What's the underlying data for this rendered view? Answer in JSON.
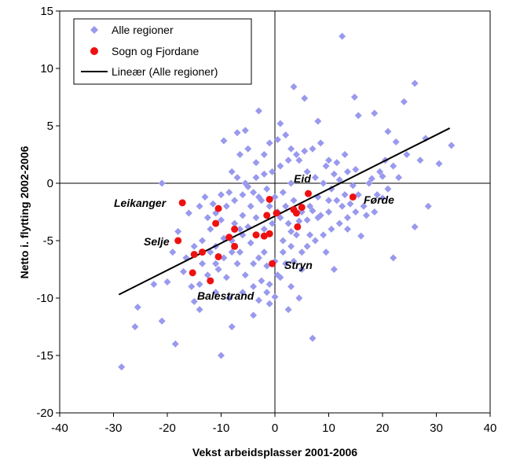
{
  "chart_data": {
    "type": "scatter",
    "xlabel": "Vekst arbeidsplasser 2001-2006",
    "ylabel": "Netto i. flytting 2002-2006",
    "xlim": [
      -40,
      40
    ],
    "ylim": [
      -20,
      15
    ],
    "xticks": [
      -40,
      -30,
      -20,
      -10,
      0,
      10,
      20,
      30,
      40
    ],
    "yticks": [
      -20,
      -15,
      -10,
      -5,
      0,
      5,
      10,
      15
    ],
    "grid": false,
    "legend_position": "top-left",
    "legend": [
      "Alle regioner",
      "Sogn og Fjordane",
      "Lineær (Alle regioner)"
    ],
    "colors": {
      "all": "#9999ee",
      "sogn": "#ee1111",
      "trend": "#000000"
    },
    "series": [
      {
        "name": "Alle regioner",
        "marker": "diamond",
        "points": [
          [
            12.5,
            12.8
          ],
          [
            26,
            8.7
          ],
          [
            3.5,
            8.4
          ],
          [
            14.8,
            7.5
          ],
          [
            24,
            7.1
          ],
          [
            5.5,
            7.4
          ],
          [
            -3,
            6.3
          ],
          [
            -5.5,
            4.6
          ],
          [
            -7,
            4.4
          ],
          [
            -9.5,
            3.7
          ],
          [
            1,
            5.2
          ],
          [
            8,
            5.4
          ],
          [
            15.5,
            5.9
          ],
          [
            18.5,
            6.1
          ],
          [
            21,
            4.5
          ],
          [
            22.5,
            3.6
          ],
          [
            28,
            3.9
          ],
          [
            32.8,
            3.3
          ],
          [
            20,
            0.6
          ],
          [
            18,
            0.4
          ],
          [
            -21,
            0
          ],
          [
            -28.5,
            -16
          ],
          [
            -26,
            -12.5
          ],
          [
            -25.5,
            -10.8
          ],
          [
            -21,
            -12
          ],
          [
            -18.5,
            -14
          ],
          [
            -10,
            -15
          ],
          [
            -20,
            -8.6
          ],
          [
            -22.5,
            -8.8
          ],
          [
            -14,
            -11
          ],
          [
            -15,
            -10.3
          ],
          [
            -8,
            -12.5
          ],
          [
            -4,
            -11.5
          ],
          [
            -1,
            -10.5
          ],
          [
            0,
            -9.9
          ],
          [
            2.5,
            -11
          ],
          [
            7,
            -13.5
          ],
          [
            22,
            -6.5
          ],
          [
            26,
            -3.8
          ],
          [
            28.5,
            -2
          ],
          [
            30.5,
            1.7
          ],
          [
            16,
            -4.6
          ],
          [
            13.5,
            -4
          ],
          [
            11,
            -7.5
          ],
          [
            9.5,
            -6
          ],
          [
            -16,
            -2.6
          ],
          [
            -18,
            -4.2
          ],
          [
            -19,
            -6
          ],
          [
            -17,
            -7.7
          ],
          [
            -13.5,
            -7
          ],
          [
            -12,
            -6
          ],
          [
            -11,
            -5.5
          ],
          [
            -9.5,
            -4.8
          ],
          [
            -8,
            -5
          ],
          [
            -6,
            -4.5
          ],
          [
            -4.5,
            -5.2
          ],
          [
            -3,
            -6.5
          ],
          [
            -1.5,
            -7.2
          ],
          [
            1.5,
            -6
          ],
          [
            3,
            -5.5
          ],
          [
            5,
            -7.5
          ],
          [
            6.5,
            -4.5
          ],
          [
            8,
            -3
          ],
          [
            10,
            -2.5
          ],
          [
            11.5,
            -1.5
          ],
          [
            13,
            -1
          ],
          [
            14.5,
            -0.2
          ],
          [
            16.5,
            -2
          ],
          [
            18.5,
            -2.5
          ],
          [
            20,
            -1.3
          ],
          [
            -14,
            -2
          ],
          [
            -12.5,
            -3
          ],
          [
            -11,
            -2.6
          ],
          [
            -9,
            -2
          ],
          [
            -7.5,
            -1.5
          ],
          [
            -6,
            -1
          ],
          [
            -5,
            -0.3
          ],
          [
            -3.5,
            0.5
          ],
          [
            -2,
            0.8
          ],
          [
            -0.5,
            1
          ],
          [
            1,
            1.5
          ],
          [
            2.5,
            2
          ],
          [
            4,
            2.5
          ],
          [
            5.5,
            2.8
          ],
          [
            7,
            3
          ],
          [
            8.5,
            3.5
          ],
          [
            10,
            2
          ],
          [
            11.5,
            1.8
          ],
          [
            13,
            2.5
          ],
          [
            15,
            1.2
          ],
          [
            -8,
            1
          ],
          [
            -6.5,
            2.5
          ],
          [
            -5,
            3
          ],
          [
            -3.5,
            1.8
          ],
          [
            -2,
            2.5
          ],
          [
            -1,
            3.5
          ],
          [
            0.5,
            3.8
          ],
          [
            2,
            4.2
          ],
          [
            3,
            3
          ],
          [
            4.5,
            2
          ],
          [
            6,
            1
          ],
          [
            7.5,
            0.5
          ],
          [
            9,
            0
          ],
          [
            10.5,
            -0.5
          ],
          [
            12,
            0.3
          ],
          [
            13.5,
            1
          ],
          [
            3,
            0
          ],
          [
            1.5,
            -0.8
          ],
          [
            0,
            -1.2
          ],
          [
            -1.5,
            -0.5
          ],
          [
            -3,
            -1.2
          ],
          [
            -4.5,
            -2
          ],
          [
            -6,
            -2.8
          ],
          [
            -7.5,
            -3.5
          ],
          [
            -10,
            -3.2
          ],
          [
            -12,
            -4
          ],
          [
            -13.5,
            -5
          ],
          [
            -15,
            -5.5
          ],
          [
            -16.5,
            -6.5
          ],
          [
            -10.5,
            -7.5
          ],
          [
            -9,
            -8.2
          ],
          [
            -7,
            -7
          ],
          [
            -5.5,
            -8
          ],
          [
            -4,
            -9
          ],
          [
            -2.5,
            -8.5
          ],
          [
            -1,
            -8.8
          ],
          [
            1,
            -8.2
          ],
          [
            2,
            -7
          ],
          [
            3.5,
            -6.8
          ],
          [
            5,
            -6
          ],
          [
            6,
            -5.5
          ],
          [
            7.5,
            -5
          ],
          [
            9,
            -4.5
          ],
          [
            10.5,
            -4
          ],
          [
            12,
            -3.5
          ],
          [
            13.5,
            -3
          ],
          [
            15,
            -2.5
          ],
          [
            4,
            -4.5
          ],
          [
            2.5,
            -3.5
          ],
          [
            1,
            -3
          ],
          [
            -0.5,
            -3.5
          ],
          [
            -2,
            -4
          ],
          [
            -3.5,
            -3
          ],
          [
            -5,
            -3.8
          ],
          [
            -6.5,
            -4
          ],
          [
            -8,
            -6
          ],
          [
            -9.5,
            -6.5
          ],
          [
            -11,
            -7
          ],
          [
            -12.5,
            -8
          ],
          [
            -14,
            -8.8
          ],
          [
            -15.5,
            -9
          ],
          [
            -11,
            -9.5
          ],
          [
            -8.5,
            -10
          ],
          [
            -6,
            -9.5
          ],
          [
            -3,
            -10.2
          ],
          [
            -1.5,
            -9.5
          ],
          [
            0.5,
            -8
          ],
          [
            3,
            -9
          ],
          [
            4.5,
            -10
          ],
          [
            17,
            -2.8
          ],
          [
            19,
            -1
          ],
          [
            21,
            -0.5
          ],
          [
            23,
            0.5
          ],
          [
            24.5,
            2.5
          ],
          [
            27,
            2
          ],
          [
            8,
            -1.2
          ],
          [
            6.5,
            -2
          ],
          [
            5,
            -2.5
          ],
          [
            3.5,
            -1.5
          ],
          [
            2,
            -2
          ],
          [
            0.5,
            -2.5
          ],
          [
            -1,
            -2
          ],
          [
            -2.5,
            -1.5
          ],
          [
            -4,
            -0.8
          ],
          [
            -5.5,
            0
          ],
          [
            -7,
            0.5
          ],
          [
            -8.5,
            -0.8
          ],
          [
            -10,
            -1
          ],
          [
            -11.5,
            -1.8
          ],
          [
            -13,
            -1.2
          ],
          [
            9.5,
            1.5
          ],
          [
            11,
            0.8
          ],
          [
            12.5,
            -2
          ],
          [
            14,
            -1.8
          ],
          [
            15.5,
            -1
          ],
          [
            17.5,
            0
          ],
          [
            19.5,
            1
          ],
          [
            20.5,
            2
          ],
          [
            22,
            1.5
          ],
          [
            -6.5,
            -6
          ],
          [
            -4,
            -7
          ],
          [
            -2,
            -6
          ],
          [
            0,
            -6.8
          ],
          [
            1.5,
            -5
          ],
          [
            3,
            -4.2
          ],
          [
            4.5,
            -3.3
          ],
          [
            6,
            -3.2
          ],
          [
            7,
            -2.4
          ],
          [
            8.5,
            -2.8
          ],
          [
            10,
            -1.5
          ]
        ]
      },
      {
        "name": "Sogn og Fjordane",
        "marker": "circle",
        "points": [
          [
            -17.2,
            -1.7
          ],
          [
            -10.5,
            -2.2
          ],
          [
            -11,
            -3.5
          ],
          [
            -7.5,
            -4
          ],
          [
            -8.5,
            -4.7
          ],
          [
            -7.5,
            -5.5
          ],
          [
            -18,
            -5
          ],
          [
            -13.5,
            -6
          ],
          [
            -15,
            -6.2
          ],
          [
            -10.5,
            -6.4
          ],
          [
            -15.3,
            -7.8
          ],
          [
            -12,
            -8.5
          ],
          [
            -3.5,
            -4.5
          ],
          [
            -2,
            -4.6
          ],
          [
            -1,
            -4.4
          ],
          [
            -1,
            -1.4
          ],
          [
            -1.5,
            -2.8
          ],
          [
            0.3,
            -2.6
          ],
          [
            3.5,
            -2.3
          ],
          [
            4,
            -2.6
          ],
          [
            4.2,
            -3.8
          ],
          [
            5,
            -2.1
          ],
          [
            6.2,
            -0.9
          ],
          [
            14.5,
            -1.2
          ],
          [
            -0.5,
            -7
          ]
        ]
      }
    ],
    "trendline": {
      "name": "Lineær (Alle regioner)",
      "x": [
        -29,
        32.5
      ],
      "y": [
        -9.7,
        4.8
      ]
    },
    "annotations": [
      "Leikanger",
      "Selje",
      "Balestrand",
      "Eid",
      "Førde",
      "Stryn"
    ]
  }
}
